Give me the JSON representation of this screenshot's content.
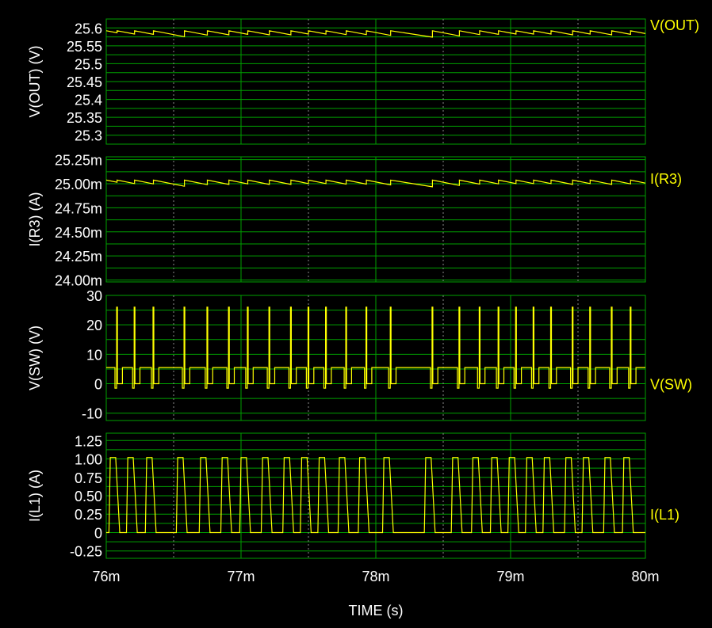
{
  "chart_data": {
    "type": "line",
    "xlabel": "TIME  (s)",
    "x_tick_labels": [
      "76m",
      "77m",
      "78m",
      "79m",
      "80m"
    ],
    "x_ticks": [
      0.076,
      0.077,
      0.078,
      0.079,
      0.08
    ],
    "xlim": [
      0.076,
      0.08
    ],
    "grid": true,
    "colors": {
      "background": "#000000",
      "grid": "#00a000",
      "trace": "#ffff00",
      "text": "#ffffff"
    },
    "panels": [
      {
        "name": "vout",
        "ylabel": "V(OUT)  (V)",
        "legend": "V(OUT)",
        "ylim": [
          25.275,
          25.625
        ],
        "y_ticks": [
          25.3,
          25.35,
          25.4,
          25.45,
          25.5,
          25.55,
          25.6
        ],
        "y_tick_labels": [
          "25.3",
          "25.35",
          "25.4",
          "25.45",
          "25.5",
          "25.55",
          "25.6"
        ],
        "signal": "sawtooth",
        "base": 25.585,
        "ripple": 0.018
      },
      {
        "name": "ir3",
        "ylabel": "I(R3)  (A)",
        "legend": "I(R3)",
        "ylim": [
          23.98,
          25.28
        ],
        "y_ticks": [
          24.0,
          24.25,
          24.5,
          24.75,
          25.0,
          25.25
        ],
        "y_tick_labels": [
          "24.00m",
          "24.25m",
          "24.50m",
          "24.75m",
          "25.00m",
          "25.25m"
        ],
        "signal": "sawtooth",
        "base": 25.01,
        "ripple": 0.07
      },
      {
        "name": "vsw",
        "ylabel": "V(SW)  (V)",
        "legend": "V(SW)",
        "ylim": [
          -12.5,
          30
        ],
        "y_ticks": [
          -10,
          0,
          10,
          20,
          30
        ],
        "y_tick_labels": [
          "-10",
          "0",
          "10",
          "20",
          "30"
        ],
        "signal": "switch",
        "high": 5.5,
        "low": 0,
        "spike": 26
      },
      {
        "name": "il1",
        "ylabel": "I(L1)  (A)",
        "legend": "I(L1)",
        "ylim": [
          -0.35,
          1.35
        ],
        "y_ticks": [
          -0.25,
          0,
          0.25,
          0.5,
          0.75,
          1.0,
          1.25
        ],
        "y_tick_labels": [
          "-0.25",
          "0",
          "0.25",
          "0.50",
          "0.75",
          "1.00",
          "1.25"
        ],
        "signal": "pulse",
        "high": 1.02,
        "low": 0
      }
    ],
    "pulse_times_ms": [
      76.08,
      76.21,
      76.35,
      76.58,
      76.75,
      76.91,
      77.05,
      77.21,
      77.37,
      77.5,
      77.63,
      77.78,
      77.93,
      78.11,
      78.42,
      78.62,
      78.77,
      78.91,
      79.04,
      79.17,
      79.3,
      79.46,
      79.59,
      79.75,
      79.89
    ]
  }
}
